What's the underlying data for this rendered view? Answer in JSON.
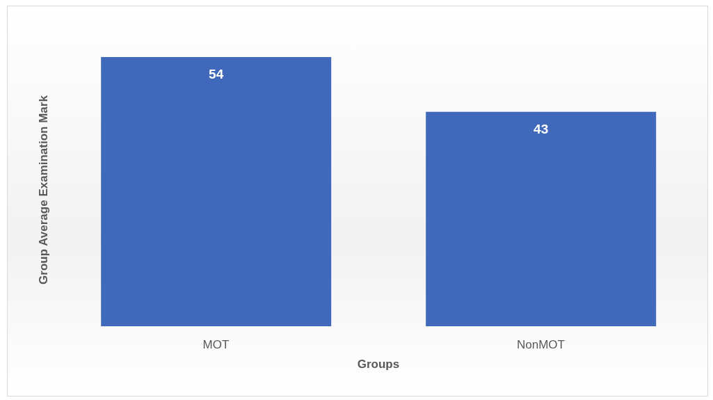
{
  "chart_data": {
    "type": "bar",
    "xlabel": "Groups",
    "ylabel": "Group Average Examination Mark",
    "categories": [
      "MOT",
      "NonMOT"
    ],
    "values": [
      54,
      43
    ],
    "color": "#4169bb",
    "data_labels": true,
    "grid": false,
    "legend": false
  }
}
